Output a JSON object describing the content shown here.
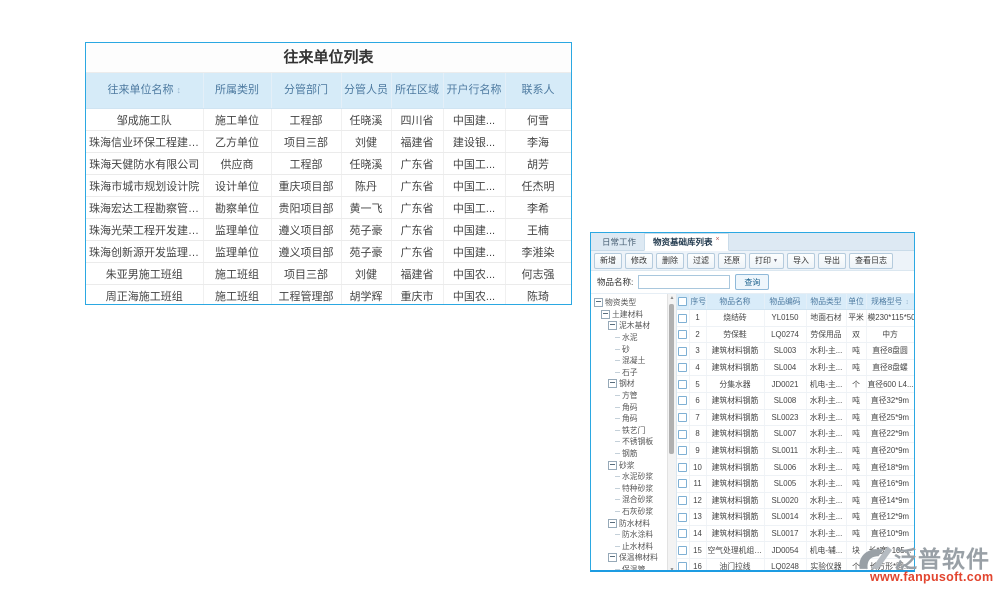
{
  "contacts": {
    "title": "往来单位列表",
    "columns": [
      "往来单位名称",
      "所属类别",
      "分管部门",
      "分管人员",
      "所在区域",
      "开户行名称",
      "联系人"
    ],
    "sort_icon": "↕",
    "rows": [
      {
        "name": "邹成施工队",
        "category": "施工单位",
        "dept": "工程部",
        "person": "任晓溪",
        "region": "四川省",
        "bank": "中国建...",
        "contact": "何雪"
      },
      {
        "name": "珠海信业环保工程建设有限...",
        "category": "乙方单位",
        "dept": "项目三部",
        "person": "刘健",
        "region": "福建省",
        "bank": "建设银...",
        "contact": "李海"
      },
      {
        "name": "珠海天健防水有限公司",
        "category": "供应商",
        "dept": "工程部",
        "person": "任晓溪",
        "region": "广东省",
        "bank": "中国工...",
        "contact": "胡芳"
      },
      {
        "name": "珠海市城市规划设计院",
        "category": "设计单位",
        "dept": "重庆项目部",
        "person": "陈丹",
        "region": "广东省",
        "bank": "中国工...",
        "contact": "任杰明"
      },
      {
        "name": "珠海宏达工程勘察管理公司",
        "category": "勘察单位",
        "dept": "贵阳项目部",
        "person": "黄一飞",
        "region": "广东省",
        "bank": "中国工...",
        "contact": "李希"
      },
      {
        "name": "珠海光荣工程开发建立有限...",
        "category": "监理单位",
        "dept": "遵义项目部",
        "person": "苑子豪",
        "region": "广东省",
        "bank": "中国建...",
        "contact": "王楠"
      },
      {
        "name": "珠海创新源开发监理公司",
        "category": "监理单位",
        "dept": "遵义项目部",
        "person": "苑子豪",
        "region": "广东省",
        "bank": "中国建...",
        "contact": "李溎染"
      },
      {
        "name": "朱亚男施工班组",
        "category": "施工班组",
        "dept": "项目三部",
        "person": "刘健",
        "region": "福建省",
        "bank": "中国农...",
        "contact": "何志强"
      },
      {
        "name": "周正海施工班组",
        "category": "施工班组",
        "dept": "工程管理部",
        "person": "胡学辉",
        "region": "重庆市",
        "bank": "中国农...",
        "contact": "陈琦"
      }
    ]
  },
  "materials": {
    "tabs": [
      {
        "label": "日常工作",
        "active": false,
        "closable": false
      },
      {
        "label": "物资基础库列表",
        "active": true,
        "closable": true,
        "close_glyph": "×"
      }
    ],
    "toolbar": [
      {
        "label": "新增"
      },
      {
        "label": "修改"
      },
      {
        "label": "删除"
      },
      {
        "label": "过滤"
      },
      {
        "label": "还原"
      },
      {
        "label": "打印",
        "dropdown": true
      },
      {
        "label": "导入"
      },
      {
        "label": "导出"
      },
      {
        "label": "查看日志"
      }
    ],
    "dropdown_glyph": "▼",
    "search": {
      "label": "物品名称:",
      "value": "",
      "button": "查询"
    },
    "tree": [
      {
        "label": "物资类型",
        "level": 0,
        "type": "branch"
      },
      {
        "label": "土建材料",
        "level": 1,
        "type": "branch"
      },
      {
        "label": "泥木基材",
        "level": 2,
        "type": "branch"
      },
      {
        "label": "水泥",
        "level": 3,
        "type": "leaf"
      },
      {
        "label": "砂",
        "level": 3,
        "type": "leaf"
      },
      {
        "label": "混凝土",
        "level": 3,
        "type": "leaf"
      },
      {
        "label": "石子",
        "level": 3,
        "type": "leaf"
      },
      {
        "label": "钢材",
        "level": 2,
        "type": "branch"
      },
      {
        "label": "方管",
        "level": 3,
        "type": "leaf"
      },
      {
        "label": "角码",
        "level": 3,
        "type": "leaf"
      },
      {
        "label": "角码",
        "level": 3,
        "type": "leaf"
      },
      {
        "label": "铁艺门",
        "level": 3,
        "type": "leaf"
      },
      {
        "label": "不锈钢板",
        "level": 3,
        "type": "leaf"
      },
      {
        "label": "钢筋",
        "level": 3,
        "type": "leaf"
      },
      {
        "label": "砂浆",
        "level": 2,
        "type": "branch"
      },
      {
        "label": "水泥砂浆",
        "level": 3,
        "type": "leaf"
      },
      {
        "label": "特种砂浆",
        "level": 3,
        "type": "leaf"
      },
      {
        "label": "混合砂浆",
        "level": 3,
        "type": "leaf"
      },
      {
        "label": "石灰砂浆",
        "level": 3,
        "type": "leaf"
      },
      {
        "label": "防水材料",
        "level": 2,
        "type": "branch"
      },
      {
        "label": "防水涂料",
        "level": 3,
        "type": "leaf"
      },
      {
        "label": "止水材料",
        "level": 3,
        "type": "leaf"
      },
      {
        "label": "保温棉材料",
        "level": 2,
        "type": "branch"
      },
      {
        "label": "保温管",
        "level": 3,
        "type": "leaf"
      }
    ],
    "table": {
      "columns": [
        "序号",
        "物品名称",
        "物品编码",
        "物品类型",
        "单位",
        "规格型号"
      ],
      "sort_icon": "↕",
      "rows": [
        {
          "seq": "1",
          "name": "烧结砖",
          "code": "YL0150",
          "type": "地面石材",
          "unit": "平米",
          "spec": "模230*115*50"
        },
        {
          "seq": "2",
          "name": "劳保鞋",
          "code": "LQ0274",
          "type": "劳保用品",
          "unit": "双",
          "spec": "中方"
        },
        {
          "seq": "3",
          "name": "建筑材料钢筋",
          "code": "SL003",
          "type": "水利-主...",
          "unit": "吨",
          "spec": "直径8盘圆"
        },
        {
          "seq": "4",
          "name": "建筑材料钢筋",
          "code": "SL004",
          "type": "水利-主...",
          "unit": "吨",
          "spec": "直径8盘螺"
        },
        {
          "seq": "5",
          "name": "分集水器",
          "code": "JD0021",
          "type": "机电-主...",
          "unit": "个",
          "spec": "直径600 L4..."
        },
        {
          "seq": "6",
          "name": "建筑材料钢筋",
          "code": "SL008",
          "type": "水利-主...",
          "unit": "吨",
          "spec": "直径32*9m"
        },
        {
          "seq": "7",
          "name": "建筑材料钢筋",
          "code": "SL0023",
          "type": "水利-主...",
          "unit": "吨",
          "spec": "直径25*9m"
        },
        {
          "seq": "8",
          "name": "建筑材料钢筋",
          "code": "SL007",
          "type": "水利-主...",
          "unit": "吨",
          "spec": "直径22*9m"
        },
        {
          "seq": "9",
          "name": "建筑材料钢筋",
          "code": "SL0011",
          "type": "水利-主...",
          "unit": "吨",
          "spec": "直径20*9m"
        },
        {
          "seq": "10",
          "name": "建筑材料钢筋",
          "code": "SL006",
          "type": "水利-主...",
          "unit": "吨",
          "spec": "直径18*9m"
        },
        {
          "seq": "11",
          "name": "建筑材料钢筋",
          "code": "SL005",
          "type": "水利-主...",
          "unit": "吨",
          "spec": "直径16*9m"
        },
        {
          "seq": "12",
          "name": "建筑材料钢筋",
          "code": "SL0020",
          "type": "水利-主...",
          "unit": "吨",
          "spec": "直径14*9m"
        },
        {
          "seq": "13",
          "name": "建筑材料钢筋",
          "code": "SL0014",
          "type": "水利-主...",
          "unit": "吨",
          "spec": "直径12*9m"
        },
        {
          "seq": "14",
          "name": "建筑材料钢筋",
          "code": "SL0017",
          "type": "水利-主...",
          "unit": "吨",
          "spec": "直径10*9m"
        },
        {
          "seq": "15",
          "name": "空气处理机组水泵",
          "code": "JD0054",
          "type": "机电-辅...",
          "unit": "块",
          "spec": "长*宽: 105..."
        },
        {
          "seq": "16",
          "name": "油门拉线",
          "code": "LQ0248",
          "type": "实验仪器",
          "unit": "个",
          "spec": "长方形*圆..."
        }
      ]
    }
  },
  "watermark": {
    "brand": "泛普软件",
    "url": "www.fanpusoft.com"
  }
}
